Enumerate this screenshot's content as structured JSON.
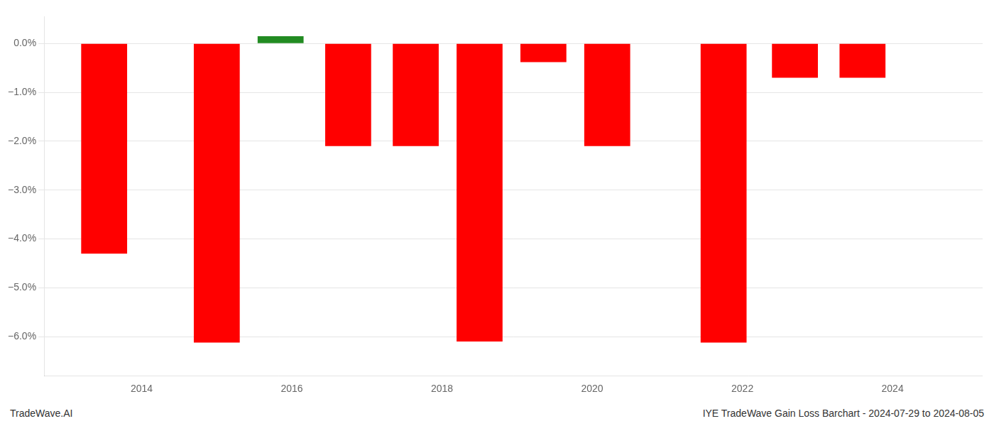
{
  "chart_data": {
    "type": "bar",
    "x": [
      2013.5,
      2015.0,
      2015.85,
      2016.75,
      2017.65,
      2018.5,
      2019.35,
      2020.2,
      2021.75,
      2022.7,
      2023.6
    ],
    "values": [
      -4.3,
      -6.12,
      0.15,
      -2.1,
      -2.1,
      -6.1,
      -0.38,
      -2.1,
      -6.12,
      -0.7,
      -0.7
    ],
    "colors": [
      "#ff0000",
      "#ff0000",
      "#228B22",
      "#ff0000",
      "#ff0000",
      "#ff0000",
      "#ff0000",
      "#ff0000",
      "#ff0000",
      "#ff0000",
      "#ff0000"
    ],
    "xlim": [
      2012.7,
      2025.2
    ],
    "ylim": [
      -6.8,
      0.55
    ],
    "xticks": [
      2014,
      2016,
      2018,
      2020,
      2022,
      2024
    ],
    "yticks": [
      {
        "value": 0.0,
        "label": "0.0%"
      },
      {
        "value": -1.0,
        "label": "−1.0%"
      },
      {
        "value": -2.0,
        "label": "−2.0%"
      },
      {
        "value": -3.0,
        "label": "−3.0%"
      },
      {
        "value": -4.0,
        "label": "−4.0%"
      },
      {
        "value": -5.0,
        "label": "−5.0%"
      },
      {
        "value": -6.0,
        "label": "−6.0%"
      }
    ],
    "grid": "y",
    "annotations": [
      "TradeWave.AI",
      "IYE TradeWave Gain Loss Barchart - 2024-07-29 to 2024-08-05"
    ]
  }
}
